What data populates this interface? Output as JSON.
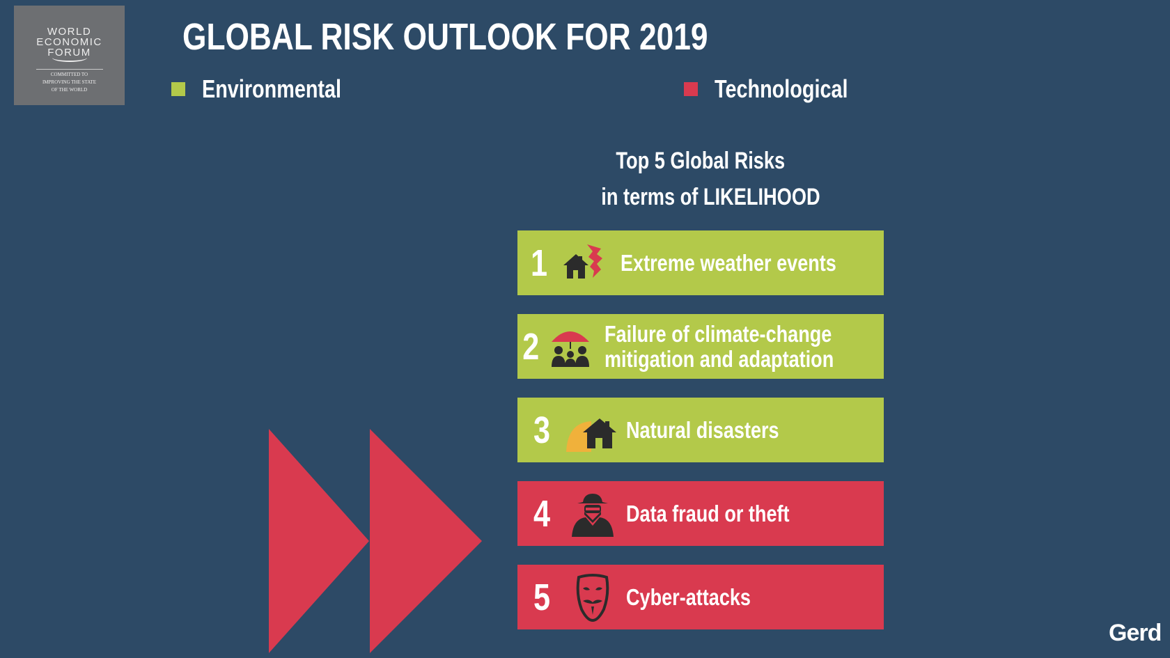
{
  "logo": {
    "lines": [
      "WORLD",
      "ECONOMIC",
      "FORUM"
    ],
    "tagline": [
      "COMMITTED TO",
      "IMPROVING THE STATE",
      "OF THE WORLD"
    ]
  },
  "title": "GLOBAL RISK OUTLOOK FOR 2019",
  "legend": [
    {
      "label": "Environmental",
      "color": "#b3c94a"
    },
    {
      "label": "Technological",
      "color": "#d93a4f"
    }
  ],
  "subtitle": [
    "Top 5 Global Risks",
    "in terms of LIKELIHOOD"
  ],
  "risks": [
    {
      "rank": "1",
      "label_lines": [
        "Extreme weather events"
      ],
      "category": "Environmental",
      "icon": "house-tornado-icon"
    },
    {
      "rank": "2",
      "label_lines": [
        "Failure of climate-change",
        "mitigation and adaptation"
      ],
      "category": "Environmental",
      "icon": "family-umbrella-icon"
    },
    {
      "rank": "3",
      "label_lines": [
        "Natural disasters"
      ],
      "category": "Environmental",
      "icon": "house-wave-icon"
    },
    {
      "rank": "4",
      "label_lines": [
        "Data fraud or theft"
      ],
      "category": "Technological",
      "icon": "spy-icon"
    },
    {
      "rank": "5",
      "label_lines": [
        "Cyber-attacks"
      ],
      "category": "Technological",
      "icon": "hacker-mask-icon"
    }
  ],
  "colors": {
    "background": "#2d4a66",
    "environmental": "#b3c94a",
    "technological": "#d93a4f",
    "icon_dark": "#2b2b2b"
  },
  "watermark": "Gerd"
}
